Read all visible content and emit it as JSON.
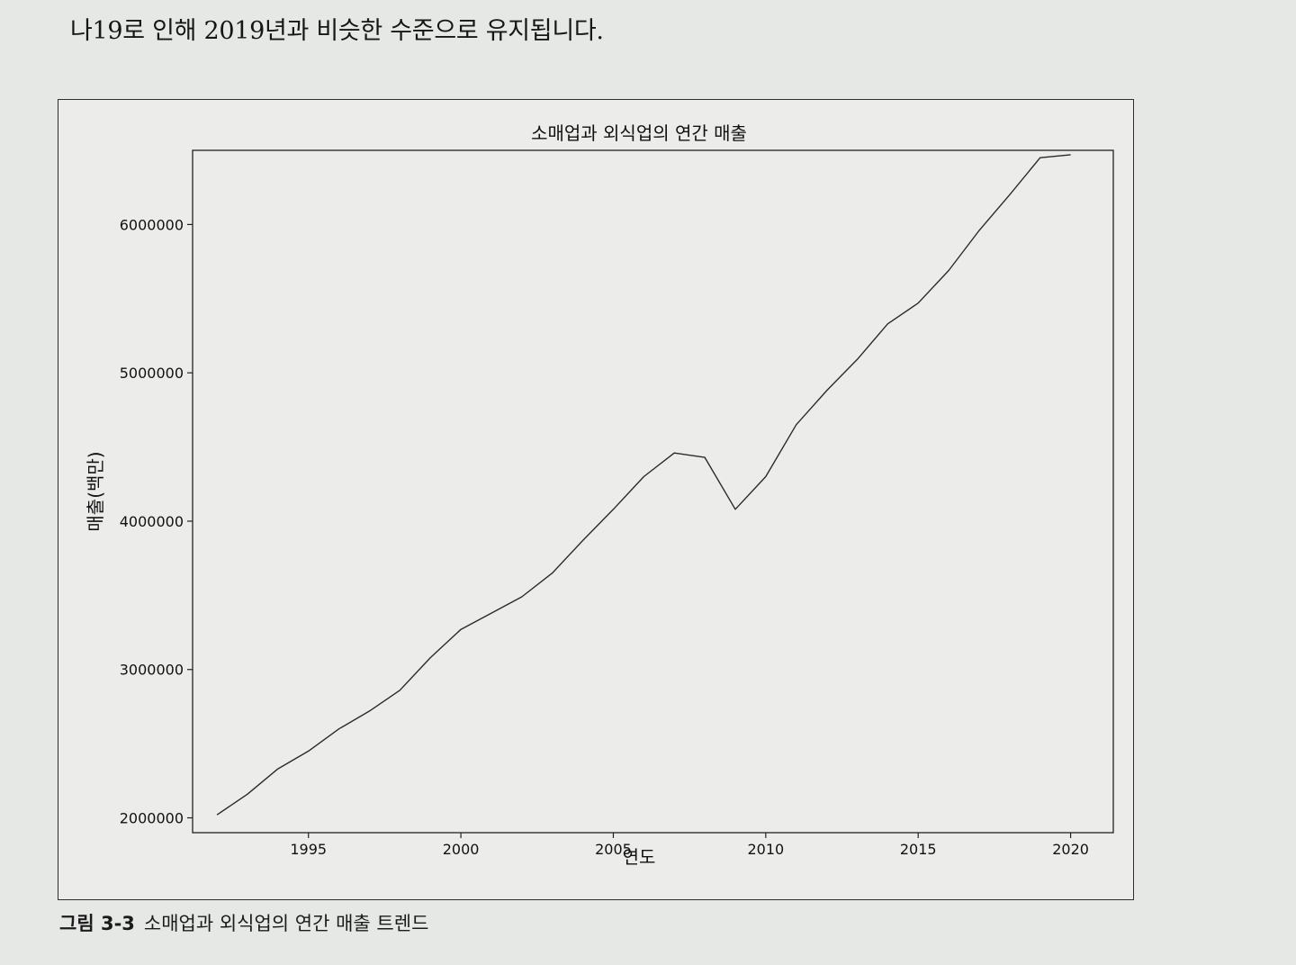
{
  "page": {
    "top_text": "나19로 인해 2019년과 비슷한 수준으로 유지됩니다.",
    "caption_number": "그림 3-3",
    "caption_text": "소매업과 외식업의 연간 매출 트렌드"
  },
  "chart_data": {
    "type": "line",
    "title": "소매업과 외식업의 연간 매출",
    "xlabel": "연도",
    "ylabel": "매출(백만)",
    "xlim": [
      1991.2,
      2021.4
    ],
    "ylim": [
      1900000,
      6500000
    ],
    "xticks": [
      1995,
      2000,
      2005,
      2010,
      2015,
      2020
    ],
    "yticks": [
      2000000,
      3000000,
      4000000,
      5000000,
      6000000
    ],
    "grid": false,
    "line_color": "#2a2a2a",
    "series": [
      {
        "x": [
          1992,
          1993,
          1994,
          1995,
          1996,
          1997,
          1998,
          1999,
          2000,
          2001,
          2002,
          2003,
          2004,
          2005,
          2006,
          2007,
          2008,
          2009,
          2010,
          2011,
          2012,
          2013,
          2014,
          2015,
          2016,
          2017,
          2018,
          2019,
          2020
        ],
        "y": [
          2020000,
          2160000,
          2330000,
          2450000,
          2600000,
          2720000,
          2860000,
          3080000,
          3270000,
          3380000,
          3490000,
          3650000,
          3870000,
          4080000,
          4300000,
          4460000,
          4430000,
          4080000,
          4300000,
          4650000,
          4880000,
          5090000,
          5330000,
          5470000,
          5690000,
          5960000,
          6200000,
          6450000,
          6470000
        ]
      }
    ]
  }
}
